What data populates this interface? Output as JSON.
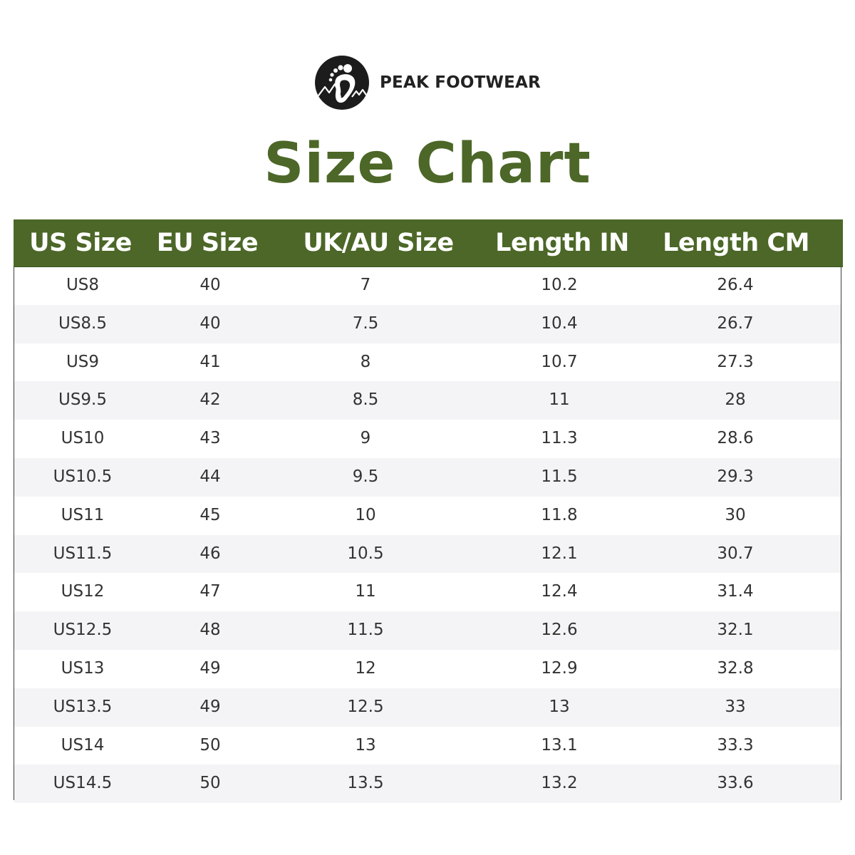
{
  "brand": {
    "name": "PEAK FOOTWEAR",
    "colors": {
      "accent": "#4c6727",
      "logo_bg": "#1c1c1c",
      "row_alt": "#f4f4f6",
      "text": "#333333"
    }
  },
  "title": "Size Chart",
  "table": {
    "headers": [
      "US Size",
      "EU Size",
      "UK/AU Size",
      "Length IN",
      "Length CM"
    ],
    "rows": [
      [
        "US8",
        "40",
        "7",
        "10.2",
        "26.4"
      ],
      [
        "US8.5",
        "40",
        "7.5",
        "10.4",
        "26.7"
      ],
      [
        "US9",
        "41",
        "8",
        "10.7",
        "27.3"
      ],
      [
        "US9.5",
        "42",
        "8.5",
        "11",
        "28"
      ],
      [
        "US10",
        "43",
        "9",
        "11.3",
        "28.6"
      ],
      [
        "US10.5",
        "44",
        "9.5",
        "11.5",
        "29.3"
      ],
      [
        "US11",
        "45",
        "10",
        "11.8",
        "30"
      ],
      [
        "US11.5",
        "46",
        "10.5",
        "12.1",
        "30.7"
      ],
      [
        "US12",
        "47",
        "11",
        "12.4",
        "31.4"
      ],
      [
        "US12.5",
        "48",
        "11.5",
        "12.6",
        "32.1"
      ],
      [
        "US13",
        "49",
        "12",
        "12.9",
        "32.8"
      ],
      [
        "US13.5",
        "49",
        "12.5",
        "13",
        "33"
      ],
      [
        "US14",
        "50",
        "13",
        "13.1",
        "33.3"
      ],
      [
        "US14.5",
        "50",
        "13.5",
        "13.2",
        "33.6"
      ]
    ]
  }
}
